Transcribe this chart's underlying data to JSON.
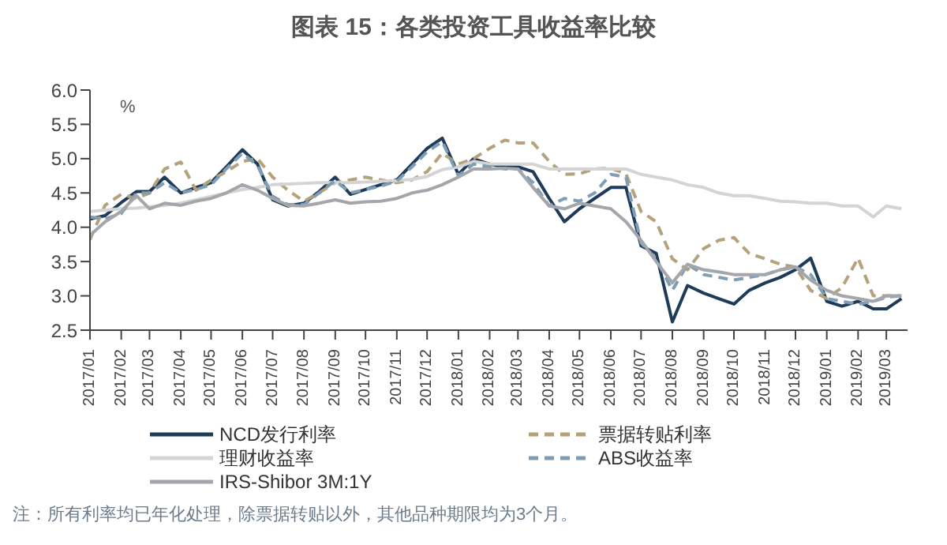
{
  "chart_data": {
    "type": "line",
    "title": "图表 15：各类投资工具收益率比较",
    "ylabel": "%",
    "annotations": [
      "注：所有利率均已年化处理，除票据转贴以外，其他品种期限均为3个月。"
    ],
    "x": [
      "2017-01-01",
      "2017-01-16",
      "2017-02-01",
      "2017-02-16",
      "2017-03-01",
      "2017-03-16",
      "2017-04-01",
      "2017-04-16",
      "2017-05-01",
      "2017-05-16",
      "2017-06-01",
      "2017-06-16",
      "2017-07-01",
      "2017-07-16",
      "2017-08-01",
      "2017-08-16",
      "2017-09-01",
      "2017-09-16",
      "2017-10-01",
      "2017-10-16",
      "2017-11-01",
      "2017-11-16",
      "2017-12-01",
      "2017-12-16",
      "2018-01-01",
      "2018-01-16",
      "2018-02-01",
      "2018-02-16",
      "2018-03-01",
      "2018-03-16",
      "2018-04-01",
      "2018-04-16",
      "2018-05-01",
      "2018-05-16",
      "2018-06-01",
      "2018-06-16",
      "2018-07-01",
      "2018-07-16",
      "2018-08-01",
      "2018-08-16",
      "2018-09-01",
      "2018-09-16",
      "2018-10-01",
      "2018-10-16",
      "2018-11-01",
      "2018-11-16",
      "2018-12-01",
      "2018-12-16",
      "2019-01-01",
      "2019-01-16",
      "2019-02-01",
      "2019-02-16",
      "2019-03-01",
      "2019-03-16"
    ],
    "xlim": [
      "2017-01-01",
      "2019-03-22"
    ],
    "xticks": [
      {
        "value": "2017-01-01",
        "label": "2017/01"
      },
      {
        "value": "2017-02-01",
        "label": "2017/02"
      },
      {
        "value": "2017-03-01",
        "label": "2017/03"
      },
      {
        "value": "2017-04-01",
        "label": "2017/04"
      },
      {
        "value": "2017-05-01",
        "label": "2017/05"
      },
      {
        "value": "2017-06-01",
        "label": "2017/06"
      },
      {
        "value": "2017-07-01",
        "label": "2017/07"
      },
      {
        "value": "2017-08-01",
        "label": "2017/08"
      },
      {
        "value": "2017-09-01",
        "label": "2017/09"
      },
      {
        "value": "2017-10-01",
        "label": "2017/10"
      },
      {
        "value": "2017-11-01",
        "label": "2017/11"
      },
      {
        "value": "2017-12-01",
        "label": "2017/12"
      },
      {
        "value": "2018-01-01",
        "label": "2018/01"
      },
      {
        "value": "2018-02-01",
        "label": "2018/02"
      },
      {
        "value": "2018-03-01",
        "label": "2018/03"
      },
      {
        "value": "2018-04-01",
        "label": "2018/04"
      },
      {
        "value": "2018-05-01",
        "label": "2018/05"
      },
      {
        "value": "2018-06-01",
        "label": "2018/06"
      },
      {
        "value": "2018-07-01",
        "label": "2018/07"
      },
      {
        "value": "2018-08-01",
        "label": "2018/08"
      },
      {
        "value": "2018-09-01",
        "label": "2018/09"
      },
      {
        "value": "2018-10-01",
        "label": "2018/10"
      },
      {
        "value": "2018-11-01",
        "label": "2018/11"
      },
      {
        "value": "2018-12-01",
        "label": "2018/12"
      },
      {
        "value": "2019-01-01",
        "label": "2019/01"
      },
      {
        "value": "2019-02-01",
        "label": "2019/02"
      },
      {
        "value": "2019-03-01",
        "label": "2019/03"
      }
    ],
    "ylim": [
      2.5,
      6.0
    ],
    "yticks": [
      {
        "value": 2.5,
        "label": "2.5"
      },
      {
        "value": 3,
        "label": "3.0"
      },
      {
        "value": 3.5,
        "label": "3.5"
      },
      {
        "value": 4,
        "label": "4.0"
      },
      {
        "value": 4.5,
        "label": "4.5"
      },
      {
        "value": 5,
        "label": "5.0"
      },
      {
        "value": 5.5,
        "label": "5.5"
      },
      {
        "value": 6,
        "label": "6.0"
      }
    ],
    "grid": false,
    "legend": "bottom",
    "marker": "none",
    "series": [
      {
        "name": "NCD发行利率",
        "color": "#1f3b5a",
        "line_style": "solid",
        "values": [
          4.12,
          4.17,
          4.36,
          4.52,
          4.52,
          4.73,
          4.5,
          4.58,
          4.65,
          4.88,
          5.13,
          4.92,
          4.4,
          4.31,
          4.35,
          4.52,
          4.73,
          4.48,
          4.55,
          4.62,
          4.69,
          4.92,
          5.15,
          5.3,
          4.77,
          5.0,
          4.92,
          4.88,
          4.88,
          4.81,
          4.42,
          4.08,
          4.27,
          4.42,
          4.58,
          4.58,
          3.73,
          3.62,
          2.62,
          3.15,
          3.04,
          2.96,
          2.88,
          3.08,
          3.19,
          3.27,
          3.38,
          3.55,
          2.92,
          2.85,
          2.92,
          2.81,
          2.81,
          2.96
        ]
      },
      {
        "name": "票据转贴利率",
        "color": "#b5a27a",
        "line_style": "dashed",
        "values": [
          3.82,
          4.32,
          4.48,
          4.42,
          4.5,
          4.85,
          4.95,
          4.54,
          4.69,
          4.81,
          4.96,
          5.0,
          4.73,
          4.54,
          4.38,
          4.5,
          4.65,
          4.69,
          4.73,
          4.69,
          4.65,
          4.69,
          4.81,
          5.08,
          4.92,
          5.0,
          5.15,
          5.27,
          5.23,
          5.23,
          4.96,
          4.77,
          4.78,
          4.85,
          4.86,
          4.78,
          4.23,
          4.08,
          3.54,
          3.38,
          3.69,
          3.81,
          3.85,
          3.62,
          3.54,
          3.46,
          3.42,
          3.08,
          2.96,
          3.12,
          3.55,
          3.0,
          3.0,
          3.0
        ]
      },
      {
        "name": "理财收益率",
        "color": "#d4d4d4",
        "line_style": "solid",
        "values": [
          4.23,
          4.25,
          4.27,
          4.28,
          4.3,
          4.32,
          4.35,
          4.4,
          4.45,
          4.5,
          4.55,
          4.58,
          4.62,
          4.63,
          4.64,
          4.65,
          4.65,
          4.65,
          4.66,
          4.67,
          4.68,
          4.7,
          4.74,
          4.84,
          4.88,
          4.96,
          4.92,
          4.92,
          4.92,
          4.92,
          4.85,
          4.85,
          4.85,
          4.85,
          4.85,
          4.85,
          4.77,
          4.73,
          4.69,
          4.62,
          4.58,
          4.5,
          4.46,
          4.46,
          4.42,
          4.38,
          4.37,
          4.35,
          4.35,
          4.31,
          4.31,
          4.15,
          4.31,
          4.27
        ]
      },
      {
        "name": "ABS收益率",
        "color": "#7f9db5",
        "line_style": "dashed",
        "values": [
          4.15,
          4.12,
          4.2,
          4.5,
          4.5,
          4.65,
          4.5,
          4.55,
          4.62,
          4.85,
          5.08,
          4.9,
          4.45,
          4.33,
          4.33,
          4.5,
          4.68,
          4.5,
          4.55,
          4.6,
          4.67,
          4.88,
          5.1,
          5.25,
          4.75,
          4.92,
          4.88,
          4.85,
          4.85,
          4.65,
          4.31,
          4.42,
          4.38,
          4.5,
          4.77,
          4.73,
          3.77,
          3.54,
          3.08,
          3.46,
          3.31,
          3.27,
          3.23,
          3.27,
          3.31,
          3.38,
          3.42,
          3.31,
          2.96,
          2.92,
          2.88,
          2.92,
          2.98,
          3.0
        ]
      },
      {
        "name": "IRS-Shibor 3M:1Y",
        "color": "#a3a7ab",
        "line_style": "solid",
        "values": [
          3.88,
          4.08,
          4.23,
          4.46,
          4.27,
          4.35,
          4.32,
          4.38,
          4.42,
          4.5,
          4.62,
          4.54,
          4.42,
          4.32,
          4.31,
          4.35,
          4.4,
          4.35,
          4.37,
          4.38,
          4.42,
          4.5,
          4.54,
          4.62,
          4.73,
          4.85,
          4.85,
          4.86,
          4.85,
          4.58,
          4.31,
          4.27,
          4.35,
          4.31,
          4.27,
          4.08,
          3.81,
          3.5,
          3.19,
          3.46,
          3.38,
          3.35,
          3.31,
          3.31,
          3.31,
          3.38,
          3.42,
          3.23,
          3.08,
          3.0,
          2.96,
          2.92,
          3.0,
          3.0
        ]
      }
    ]
  }
}
